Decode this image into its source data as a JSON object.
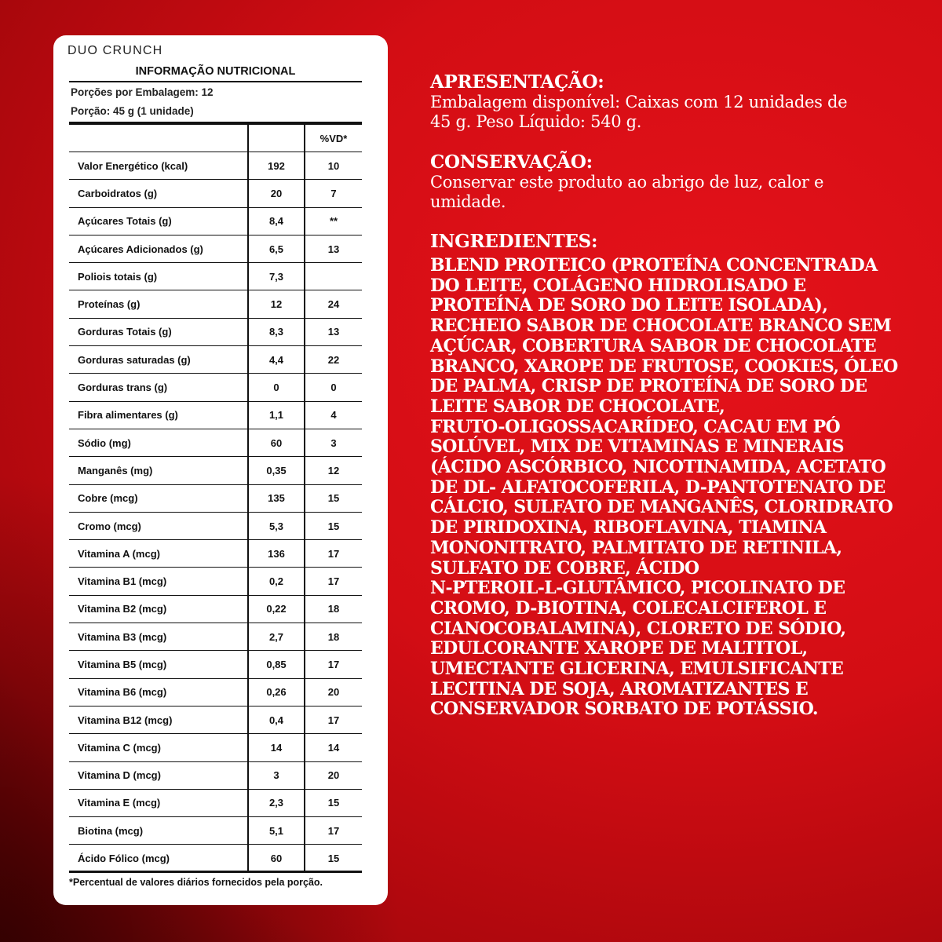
{
  "background_color": "#d30d14",
  "label": {
    "brand": "DUO CRUNCH",
    "title": "INFORMAÇÃO NUTRICIONAL",
    "servings_per_package": "Porções por Embalagem: 12",
    "serving_size": "Porção: 45 g (1 unidade)",
    "columns": [
      "",
      "",
      "%VD*"
    ],
    "rows": [
      {
        "name": "Valor Energético (kcal)",
        "value": "192",
        "dv": "10"
      },
      {
        "name": "Carboidratos (g)",
        "value": "20",
        "dv": "7"
      },
      {
        "name": "Açúcares Totais (g)",
        "value": "8,4",
        "dv": "**"
      },
      {
        "name": "Açúcares Adicionados (g)",
        "value": "6,5",
        "dv": "13"
      },
      {
        "name": "Poliois totais (g)",
        "value": "7,3",
        "dv": ""
      },
      {
        "name": "Proteínas (g)",
        "value": "12",
        "dv": "24"
      },
      {
        "name": "Gorduras Totais (g)",
        "value": "8,3",
        "dv": "13"
      },
      {
        "name": "Gorduras saturadas (g)",
        "value": "4,4",
        "dv": "22"
      },
      {
        "name": "Gorduras trans (g)",
        "value": "0",
        "dv": "0"
      },
      {
        "name": "Fibra alimentares (g)",
        "value": "1,1",
        "dv": "4"
      },
      {
        "name": "Sódio (mg)",
        "value": "60",
        "dv": "3"
      },
      {
        "name": "Manganês (mg)",
        "value": "0,35",
        "dv": "12"
      },
      {
        "name": "Cobre (mcg)",
        "value": "135",
        "dv": "15"
      },
      {
        "name": "Cromo (mcg)",
        "value": "5,3",
        "dv": "15"
      },
      {
        "name": "Vitamina A (mcg)",
        "value": "136",
        "dv": "17"
      },
      {
        "name": "Vitamina B1 (mcg)",
        "value": "0,2",
        "dv": "17"
      },
      {
        "name": "Vitamina B2 (mcg)",
        "value": "0,22",
        "dv": "18"
      },
      {
        "name": "Vitamina B3 (mcg)",
        "value": "2,7",
        "dv": "18"
      },
      {
        "name": "Vitamina B5 (mcg)",
        "value": "0,85",
        "dv": "17"
      },
      {
        "name": "Vitamina B6 (mcg)",
        "value": "0,26",
        "dv": "20"
      },
      {
        "name": "Vitamina B12 (mcg)",
        "value": "0,4",
        "dv": "17"
      },
      {
        "name": "Vitamina C (mcg)",
        "value": "14",
        "dv": "14"
      },
      {
        "name": "Vitamina D (mcg)",
        "value": "3",
        "dv": "20"
      },
      {
        "name": "Vitamina E (mcg)",
        "value": "2,3",
        "dv": "15"
      },
      {
        "name": "Biotina (mcg)",
        "value": "5,1",
        "dv": "17"
      },
      {
        "name": "Ácido Fólico (mcg)",
        "value": "60",
        "dv": "15"
      }
    ],
    "footnote": "*Percentual de valores diários fornecidos pela porção."
  },
  "info": {
    "presentation_title": "APRESENTAÇÃO:",
    "presentation_lines": [
      "Embalagem disponível: Caixas com 12 unidades de",
      "45 g. Peso Líquido: 540 g."
    ],
    "conservation_title": "CONSERVAÇÃO:",
    "conservation_lines": [
      "Conservar este produto ao abrigo de luz, calor e",
      "umidade."
    ],
    "ingredients_title": "INGREDIENTES:",
    "ingredients_lines": [
      "BLEND PROTEICO (PROTEÍNA CONCENTRADA",
      "DO LEITE, COLÁGENO HIDROLISADO E",
      "PROTEÍNA DE SORO DO LEITE ISOLADA),",
      "RECHEIO SABOR DE CHOCOLATE BRANCO SEM",
      "AÇÚCAR, COBERTURA SABOR DE CHOCOLATE",
      "BRANCO, XAROPE DE FRUTOSE, COOKIES, ÓLEO",
      "DE PALMA, CRISP DE PROTEÍNA DE SORO DE",
      "LEITE SABOR DE CHOCOLATE,",
      "FRUTO-OLIGOSSACARÍDEO, CACAU EM PÓ",
      "SOLÚVEL, MIX DE VITAMINAS E MINERAIS",
      "(ÁCIDO ASCÓRBICO, NICOTINAMIDA, ACETATO",
      "DE DL- ALFATOCOFERILA, D-PANTOTENATO DE",
      "CÁLCIO, SULFATO DE MANGANÊS, CLORIDRATO",
      "DE PIRIDOXINA, RIBOFLAVINA, TIAMINA",
      "MONONITRATO, PALMITATO DE RETINILA,",
      "SULFATO DE COBRE, ÁCIDO",
      "N-PTEROIL-L-GLUTÂMICO, PICOLINATO DE",
      "CROMO, D-BIOTINA, COLECALCIFEROL E",
      "CIANOCOBALAMINA), CLORETO DE SÓDIO,",
      "EDULCORANTE XAROPE DE MALTITOL,",
      "UMECTANTE GLICERINA, EMULSIFICANTE",
      "LECITINA DE SOJA, AROMATIZANTES E",
      "CONSERVADOR SORBATO DE POTÁSSIO."
    ]
  }
}
